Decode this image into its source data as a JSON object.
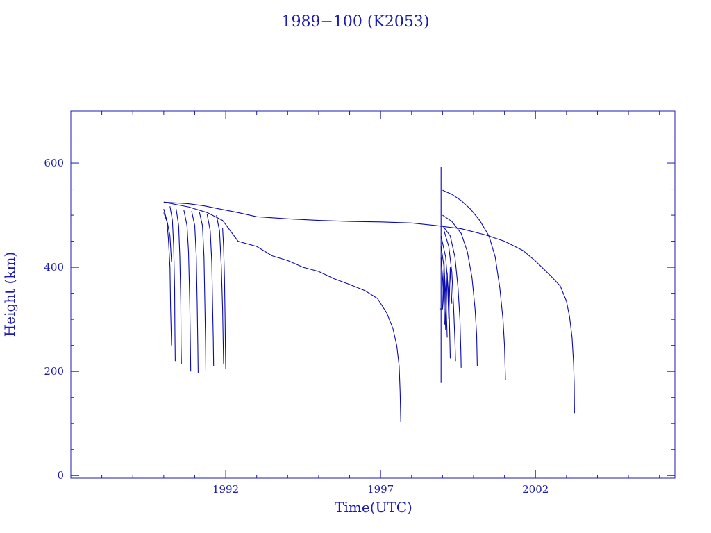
{
  "chart_data": {
    "type": "line",
    "title": "1989−100 (K2053)",
    "xlabel": "Time(UTC)",
    "ylabel": "Height (km)",
    "xlim": [
      1987.0,
      2006.5
    ],
    "ylim": [
      -5,
      700
    ],
    "x_major_ticks": [
      1992,
      1997,
      2002
    ],
    "x_tick_labels": [
      "1992",
      "1997",
      "2002"
    ],
    "y_major_ticks": [
      0,
      200,
      400,
      600
    ],
    "y_tick_labels": [
      "0",
      "200",
      "400",
      "600"
    ],
    "grid": false,
    "series": [
      {
        "points": [
          [
            1990.0,
            525
          ],
          [
            1990.8,
            522
          ],
          [
            1991.3,
            518
          ],
          [
            1991.8,
            512
          ],
          [
            1992.4,
            505
          ],
          [
            1993.0,
            497
          ],
          [
            1994.0,
            493
          ],
          [
            1995.0,
            490
          ],
          [
            1996.0,
            488
          ],
          [
            1997.0,
            487
          ],
          [
            1998.0,
            485
          ],
          [
            1998.8,
            480
          ],
          [
            1999.6,
            474
          ],
          [
            2000.4,
            462
          ],
          [
            2001.0,
            450
          ],
          [
            2001.6,
            432
          ],
          [
            2002.0,
            412
          ],
          [
            2002.5,
            383
          ],
          [
            2002.8,
            364
          ],
          [
            2003.0,
            335
          ],
          [
            2003.1,
            305
          ],
          [
            2003.18,
            265
          ],
          [
            2003.23,
            215
          ],
          [
            2003.25,
            175
          ],
          [
            2003.26,
            120
          ]
        ]
      },
      {
        "points": [
          [
            1990.0,
            525
          ],
          [
            1990.8,
            516
          ],
          [
            1991.4,
            505
          ],
          [
            1991.9,
            490
          ],
          [
            1992.4,
            450
          ],
          [
            1993.0,
            440
          ],
          [
            1993.5,
            422
          ],
          [
            1994.0,
            413
          ],
          [
            1994.5,
            400
          ],
          [
            1995.0,
            392
          ],
          [
            1995.5,
            378
          ],
          [
            1996.0,
            367
          ],
          [
            1996.5,
            355
          ],
          [
            1996.9,
            340
          ],
          [
            1997.2,
            312
          ],
          [
            1997.4,
            282
          ],
          [
            1997.52,
            250
          ],
          [
            1997.6,
            210
          ],
          [
            1997.63,
            160
          ],
          [
            1997.65,
            103
          ]
        ]
      },
      {
        "points": [
          [
            1990.0,
            512
          ],
          [
            1990.1,
            490
          ],
          [
            1990.15,
            455
          ],
          [
            1990.2,
            400
          ],
          [
            1990.22,
            320
          ],
          [
            1990.25,
            250
          ]
        ]
      },
      {
        "points": [
          [
            1990.0,
            505
          ],
          [
            1990.12,
            485
          ],
          [
            1990.2,
            460
          ],
          [
            1990.25,
            410
          ]
        ]
      },
      {
        "points": [
          [
            1990.2,
            517
          ],
          [
            1990.28,
            490
          ],
          [
            1990.32,
            440
          ],
          [
            1990.35,
            360
          ],
          [
            1990.36,
            280
          ],
          [
            1990.37,
            220
          ]
        ]
      },
      {
        "points": [
          [
            1990.4,
            512
          ],
          [
            1990.48,
            480
          ],
          [
            1990.52,
            420
          ],
          [
            1990.55,
            330
          ],
          [
            1990.56,
            250
          ],
          [
            1990.57,
            215
          ]
        ]
      },
      {
        "points": [
          [
            1990.65,
            510
          ],
          [
            1990.75,
            480
          ],
          [
            1990.8,
            430
          ],
          [
            1990.84,
            330
          ],
          [
            1990.86,
            250
          ],
          [
            1990.87,
            200
          ]
        ]
      },
      {
        "points": [
          [
            1990.9,
            508
          ],
          [
            1991.0,
            480
          ],
          [
            1991.05,
            420
          ],
          [
            1991.08,
            330
          ],
          [
            1991.1,
            250
          ],
          [
            1991.11,
            197
          ]
        ]
      },
      {
        "points": [
          [
            1991.15,
            506
          ],
          [
            1991.25,
            480
          ],
          [
            1991.3,
            420
          ],
          [
            1991.33,
            320
          ],
          [
            1991.35,
            250
          ],
          [
            1991.36,
            200
          ]
        ]
      },
      {
        "points": [
          [
            1991.4,
            502
          ],
          [
            1991.5,
            470
          ],
          [
            1991.55,
            410
          ],
          [
            1991.58,
            320
          ],
          [
            1991.6,
            260
          ],
          [
            1991.61,
            210
          ]
        ]
      },
      {
        "points": [
          [
            1991.7,
            500
          ],
          [
            1991.8,
            470
          ],
          [
            1991.86,
            400
          ],
          [
            1991.9,
            320
          ],
          [
            1991.92,
            250
          ],
          [
            1991.93,
            215
          ]
        ]
      },
      {
        "points": [
          [
            1991.9,
            475
          ],
          [
            1991.93,
            440
          ],
          [
            1991.96,
            380
          ],
          [
            1991.98,
            300
          ],
          [
            1991.99,
            250
          ],
          [
            1992.0,
            205
          ]
        ]
      },
      {
        "points": [
          [
            1999.0,
            548
          ],
          [
            1999.3,
            540
          ],
          [
            1999.6,
            528
          ],
          [
            1999.9,
            512
          ],
          [
            2000.2,
            490
          ],
          [
            2000.5,
            460
          ],
          [
            2000.7,
            420
          ],
          [
            2000.85,
            360
          ],
          [
            2000.95,
            300
          ],
          [
            2001.0,
            250
          ],
          [
            2001.03,
            183
          ]
        ]
      },
      {
        "points": [
          [
            1999.0,
            500
          ],
          [
            1999.3,
            488
          ],
          [
            1999.6,
            465
          ],
          [
            1999.8,
            430
          ],
          [
            1999.95,
            380
          ],
          [
            2000.05,
            320
          ],
          [
            2000.1,
            270
          ],
          [
            2000.12,
            210
          ]
        ]
      },
      {
        "points": [
          [
            1999.0,
            480
          ],
          [
            1999.25,
            460
          ],
          [
            1999.4,
            420
          ],
          [
            1999.5,
            360
          ],
          [
            1999.56,
            300
          ],
          [
            1999.59,
            240
          ],
          [
            1999.6,
            207
          ]
        ]
      },
      {
        "points": [
          [
            1999.05,
            470
          ],
          [
            1999.2,
            440
          ],
          [
            1999.3,
            390
          ],
          [
            1999.36,
            320
          ],
          [
            1999.4,
            260
          ],
          [
            1999.42,
            220
          ]
        ]
      },
      {
        "points": [
          [
            1998.95,
            460
          ],
          [
            1999.1,
            420
          ],
          [
            1999.18,
            360
          ],
          [
            1999.22,
            300
          ],
          [
            1999.24,
            250
          ],
          [
            1999.25,
            225
          ]
        ]
      },
      {
        "points": [
          [
            1998.95,
            440
          ],
          [
            1999.05,
            400
          ],
          [
            1999.1,
            350
          ],
          [
            1999.13,
            300
          ],
          [
            1999.15,
            265
          ]
        ]
      },
      {
        "points": [
          [
            1998.95,
            420
          ],
          [
            1999.0,
            380
          ],
          [
            1999.04,
            330
          ],
          [
            1999.07,
            290
          ]
        ]
      },
      {
        "points": [
          [
            1998.95,
            593
          ],
          [
            1998.95,
            178
          ]
        ]
      },
      {
        "points": [
          [
            1998.9,
            320
          ],
          [
            1999.0,
            320
          ],
          [
            1999.05,
            410
          ],
          [
            1999.1,
            280
          ],
          [
            1999.15,
            390
          ],
          [
            1999.2,
            300
          ],
          [
            1999.25,
            400
          ],
          [
            1999.3,
            330
          ]
        ]
      }
    ]
  }
}
